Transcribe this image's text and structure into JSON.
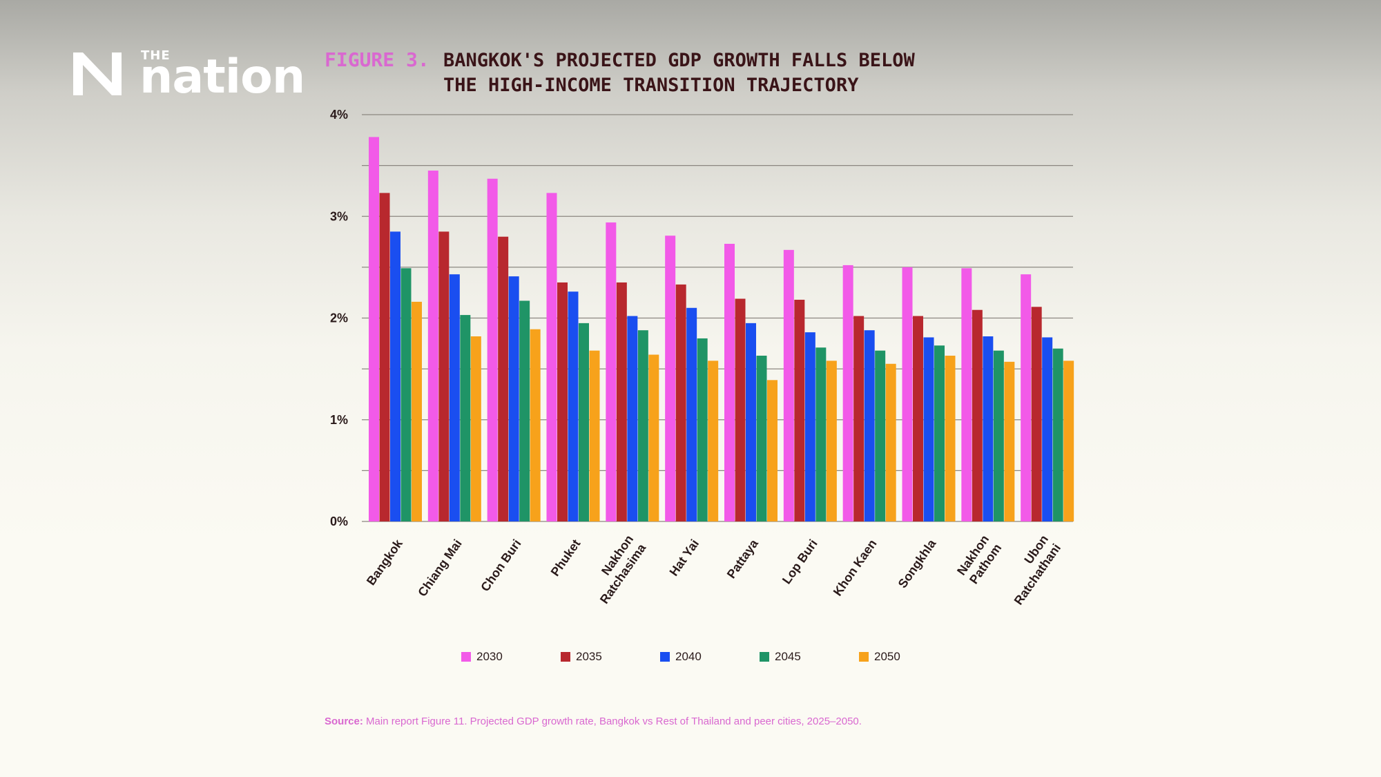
{
  "brand": {
    "the": "THE",
    "name": "nation"
  },
  "figure_label": "FIGURE 3.",
  "title_lines": [
    "BANGKOK'S PROJECTED GDP GROWTH FALLS BELOW",
    "THE HIGH-INCOME TRANSITION TRAJECTORY"
  ],
  "source": {
    "prefix": "Source:",
    "text": " Main report Figure 11. Projected GDP growth rate, Bangkok vs Rest of Thailand and peer cities, 2025–2050."
  },
  "colors": {
    "2030": "#f25ae8",
    "2035": "#b8282e",
    "2040": "#1a4ef0",
    "2045": "#1f9466",
    "2050": "#f7a21b",
    "text": "#2a1a1a",
    "accent": "#d968d0"
  },
  "chart_data": {
    "type": "bar",
    "categories": [
      [
        "Bangkok"
      ],
      [
        "Chiang Mai"
      ],
      [
        "Chon Buri"
      ],
      [
        "Phuket"
      ],
      [
        "Nakhon",
        "Ratchasima"
      ],
      [
        "Hat Yai"
      ],
      [
        "Pattaya"
      ],
      [
        "Lop Buri"
      ],
      [
        "Khon Kaen"
      ],
      [
        "Songkhla"
      ],
      [
        "Nakhon",
        "Pathom"
      ],
      [
        "Ubon",
        "Ratchathani"
      ]
    ],
    "series": [
      {
        "name": "2030",
        "values": [
          3.78,
          3.45,
          3.37,
          3.23,
          2.94,
          2.81,
          2.73,
          2.67,
          2.52,
          2.5,
          2.49,
          2.43
        ]
      },
      {
        "name": "2035",
        "values": [
          3.23,
          2.85,
          2.8,
          2.35,
          2.35,
          2.33,
          2.19,
          2.18,
          2.02,
          2.02,
          2.08,
          2.11
        ]
      },
      {
        "name": "2040",
        "values": [
          2.85,
          2.43,
          2.41,
          2.26,
          2.02,
          2.1,
          1.95,
          1.86,
          1.88,
          1.81,
          1.82,
          1.81
        ]
      },
      {
        "name": "2045",
        "values": [
          2.49,
          2.03,
          2.17,
          1.95,
          1.88,
          1.8,
          1.63,
          1.71,
          1.68,
          1.73,
          1.68,
          1.7
        ]
      },
      {
        "name": "2050",
        "values": [
          2.16,
          1.82,
          1.89,
          1.68,
          1.64,
          1.58,
          1.39,
          1.58,
          1.55,
          1.63,
          1.57,
          1.58
        ]
      }
    ],
    "yticks": [
      "0%",
      "1%",
      "2%",
      "3%",
      "4%"
    ],
    "ylim": [
      0,
      4
    ],
    "gridlines_every": 0.5,
    "legend_position": "bottom"
  }
}
